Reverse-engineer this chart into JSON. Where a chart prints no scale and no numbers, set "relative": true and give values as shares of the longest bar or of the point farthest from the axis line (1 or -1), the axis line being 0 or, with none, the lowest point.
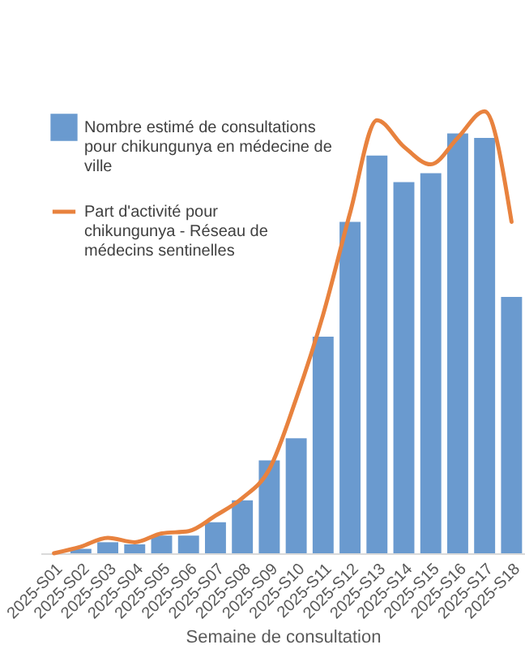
{
  "chart_data": {
    "type": "bar",
    "relative": true,
    "xlabel": "Semaine de consultation",
    "legend": "top left",
    "categories": [
      "2025-S01",
      "2025-S02",
      "2025-S03",
      "2025-S04",
      "2025-S05",
      "2025-S06",
      "2025-S07",
      "2025-S08",
      "2025-S09",
      "2025-S10",
      "2025-S11",
      "2025-S12",
      "2025-S13",
      "2025-S14",
      "2025-S15",
      "2025-S16",
      "2025-S17",
      "2025-S18"
    ],
    "series": [
      {
        "name": "Nombre estimé de consultations pour chikungunya en médecine de ville",
        "type": "bar",
        "color": "#6a9acf",
        "values": [
          0,
          0.01,
          0.025,
          0.02,
          0.04,
          0.04,
          0.07,
          0.12,
          0.21,
          0.26,
          0.49,
          0.75,
          0.9,
          0.84,
          0.86,
          0.95,
          0.94,
          0.58
        ]
      },
      {
        "name": "Part d'activité pour chikungunya - Réseau de médecins sentinelles",
        "type": "line",
        "color": "#e8823e",
        "values": [
          0,
          0.015,
          0.035,
          0.025,
          0.045,
          0.05,
          0.085,
          0.125,
          0.19,
          0.35,
          0.54,
          0.77,
          0.98,
          0.92,
          0.88,
          0.94,
          1,
          0.75
        ]
      }
    ]
  }
}
